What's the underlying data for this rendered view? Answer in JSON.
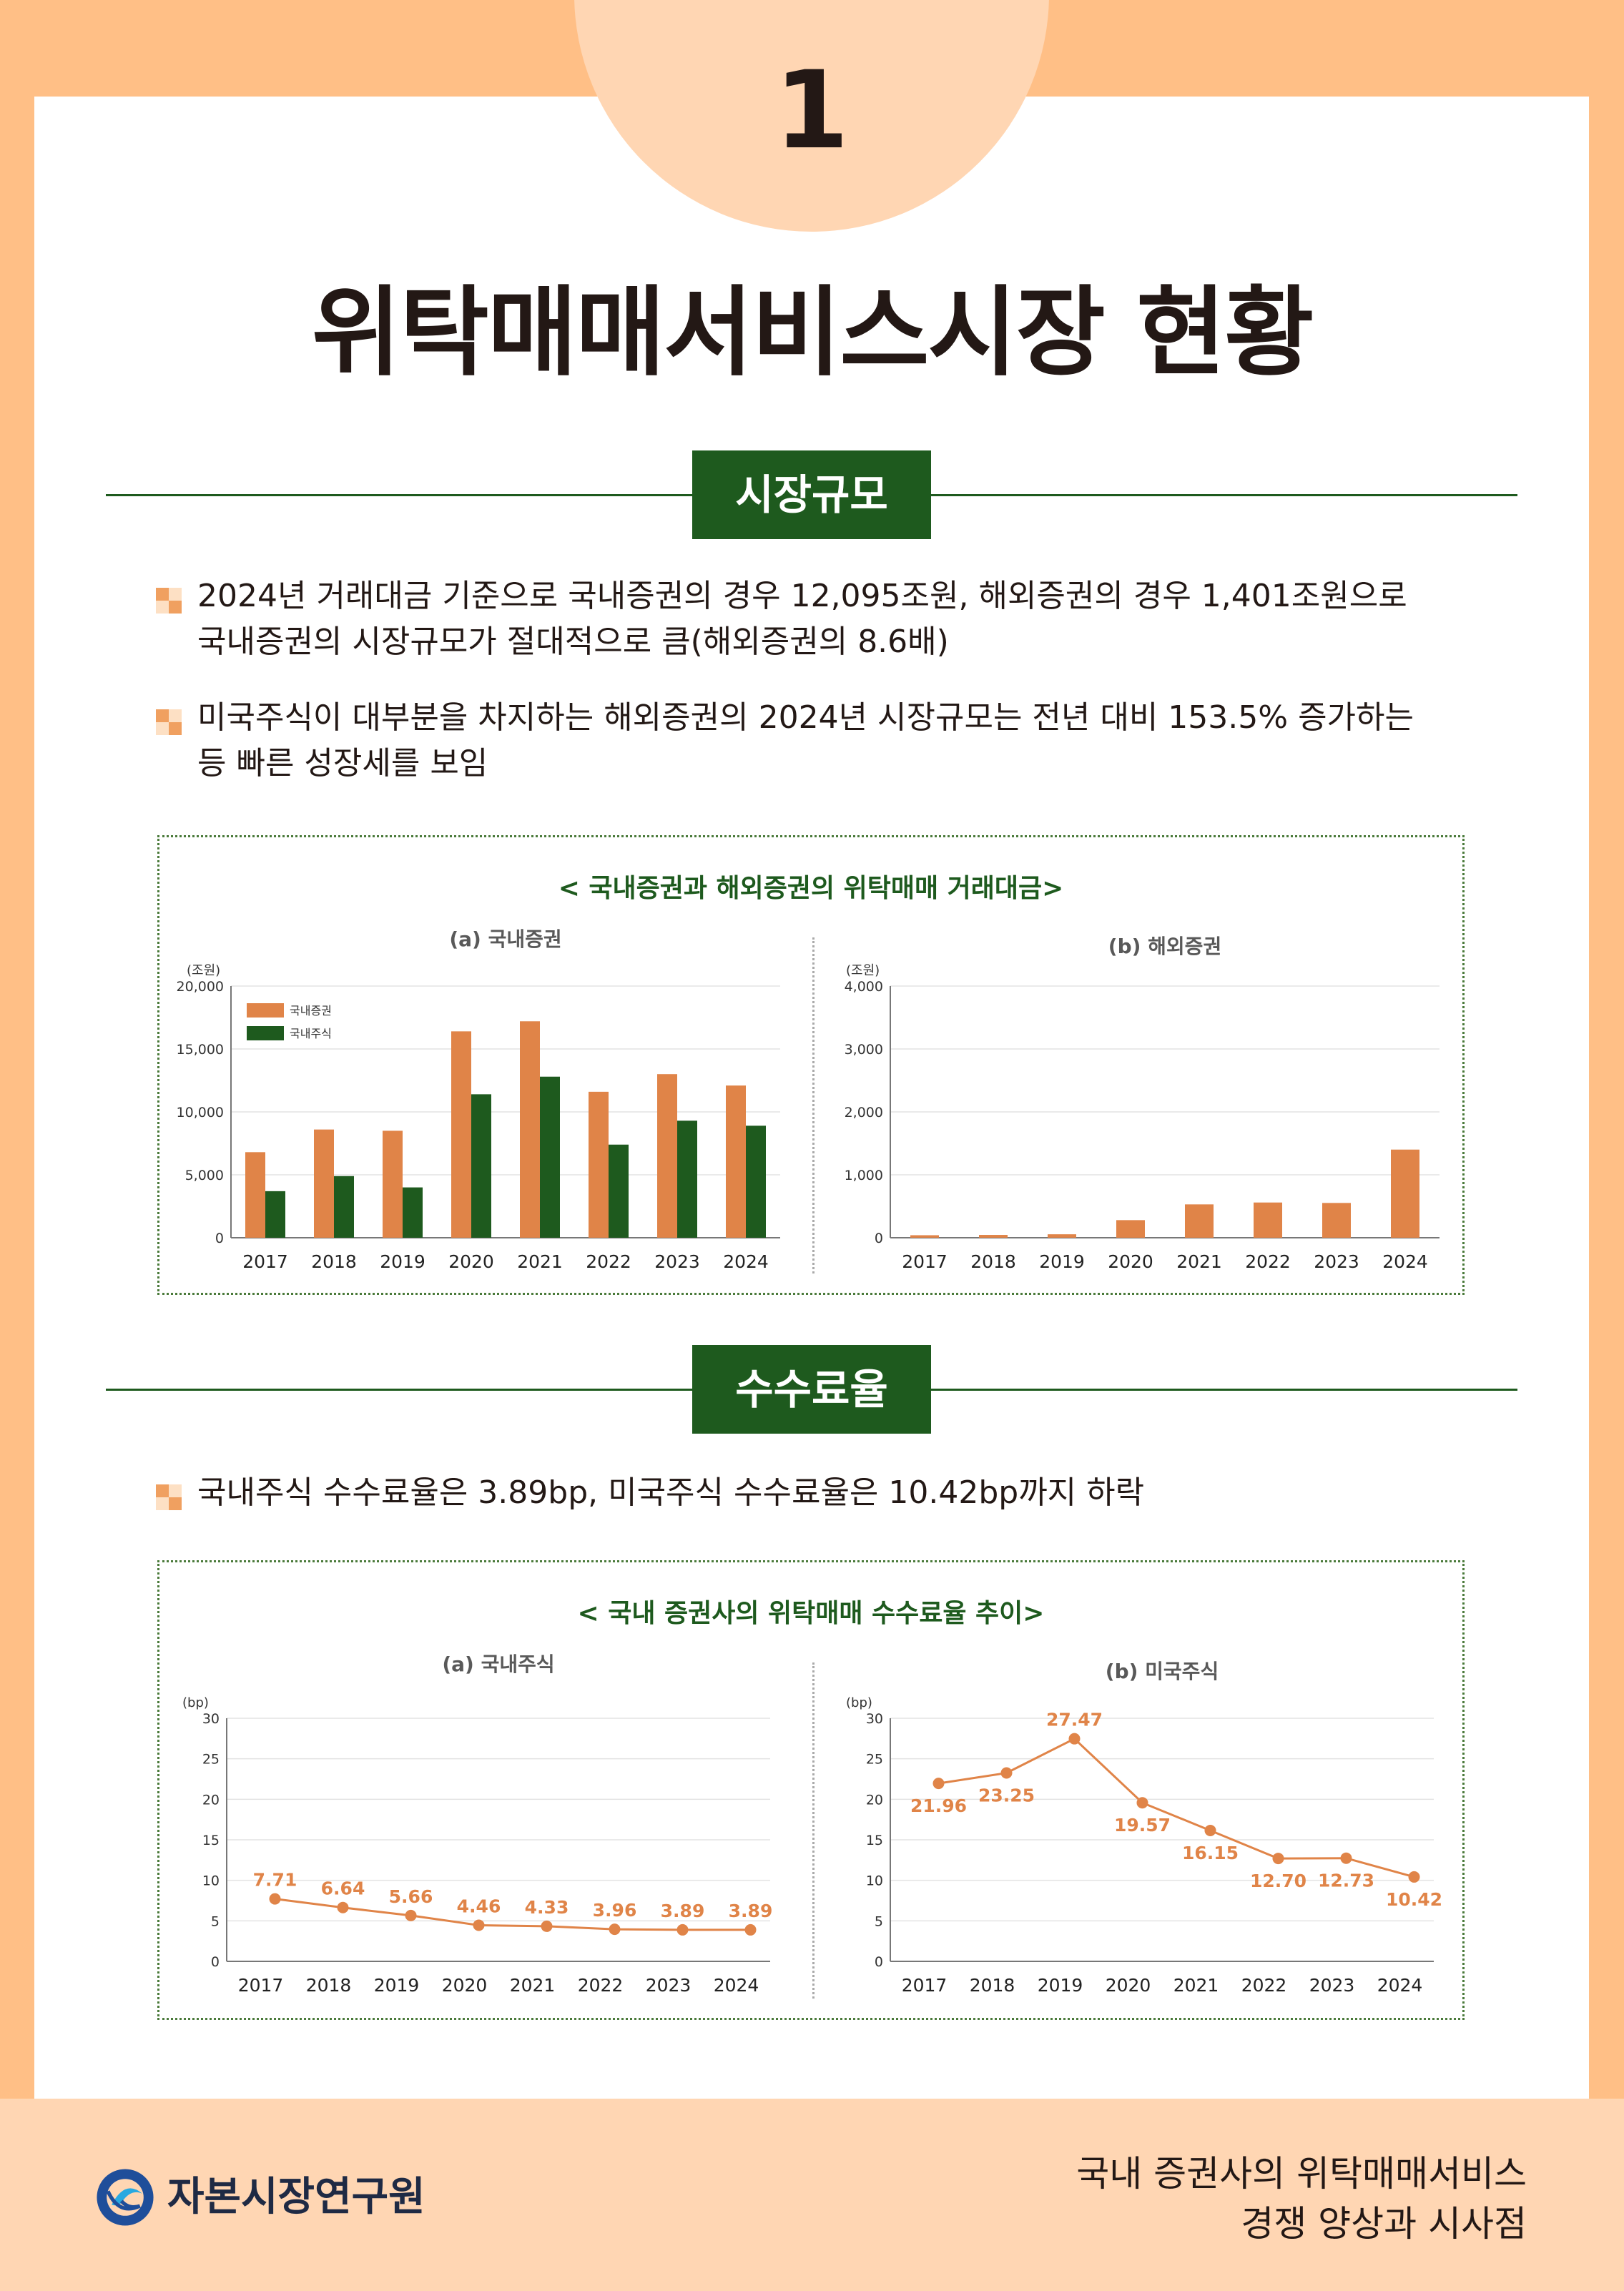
{
  "header": {
    "number": "1",
    "title": "위탁매매서비스시장 현황"
  },
  "section1": {
    "label": "시장규모",
    "bullets": [
      "2024년 거래대금 기준으로 국내증권의 경우 12,095조원, 해외증권의 경우 1,401조원으로\n국내증권의 시장규모가 절대적으로 큼(해외증권의 8.6배)",
      "미국주식이 대부분을 차지하는 해외증권의 2024년 시장규모는 전년 대비 153.5% 증가하는\n등 빠른 성장세를 보임"
    ]
  },
  "section2": {
    "label": "수수료율",
    "bullets": [
      "국내주식 수수료율은 3.89bp, 미국주식 수수료율은 10.42bp까지 하락"
    ]
  },
  "chart1_title": "< 국내증권과 해외증권의 위탁매매 거래대금>",
  "chart2_title": "< 국내 증권사의 위탁매매 수수료율 추이>",
  "colors": {
    "orange": "#e08448",
    "green": "#1e5a1e",
    "accent": "#ffbf86"
  },
  "chart_data": [
    {
      "type": "bar",
      "title": "(a) 국내증권",
      "ylabel": "(조원)",
      "ylim": [
        0,
        20000
      ],
      "yticks": [
        "0",
        "5,000",
        "10,000",
        "15,000",
        "20,000"
      ],
      "categories": [
        "2017",
        "2018",
        "2019",
        "2020",
        "2021",
        "2022",
        "2023",
        "2024"
      ],
      "series": [
        {
          "name": "국내증권",
          "values": [
            6800,
            8600,
            8500,
            16400,
            17200,
            11600,
            13000,
            12095
          ]
        },
        {
          "name": "국내주식",
          "values": [
            3700,
            4900,
            4000,
            11400,
            12800,
            7400,
            9300,
            8900
          ]
        }
      ],
      "legend": "top-left"
    },
    {
      "type": "bar",
      "title": "(b) 해외증권",
      "ylabel": "(조원)",
      "ylim": [
        0,
        4000
      ],
      "yticks": [
        "0",
        "1,000",
        "2,000",
        "3,000",
        "4,000"
      ],
      "categories": [
        "2017",
        "2018",
        "2019",
        "2020",
        "2021",
        "2022",
        "2023",
        "2024"
      ],
      "series": [
        {
          "name": "해외증권",
          "values": [
            40,
            45,
            55,
            280,
            530,
            560,
            553,
            1401
          ]
        }
      ]
    },
    {
      "type": "line",
      "title": "(a) 국내주식",
      "ylabel": "(bp)",
      "ylim": [
        0,
        30
      ],
      "yticks": [
        "0",
        "5",
        "10",
        "15",
        "20",
        "25",
        "30"
      ],
      "categories": [
        "2017",
        "2018",
        "2019",
        "2020",
        "2021",
        "2022",
        "2023",
        "2024"
      ],
      "values": [
        7.71,
        6.64,
        5.66,
        4.46,
        4.33,
        3.96,
        3.89,
        3.89
      ],
      "labels": [
        "7.71",
        "6.64",
        "5.66",
        "4.46",
        "4.33",
        "3.96",
        "3.89",
        "3.89"
      ],
      "label_pos": [
        "above",
        "above",
        "above",
        "above",
        "above",
        "above",
        "above",
        "above"
      ]
    },
    {
      "type": "line",
      "title": "(b) 미국주식",
      "ylabel": "(bp)",
      "ylim": [
        0,
        30
      ],
      "yticks": [
        "0",
        "5",
        "10",
        "15",
        "20",
        "25",
        "30"
      ],
      "categories": [
        "2017",
        "2018",
        "2019",
        "2020",
        "2021",
        "2022",
        "2023",
        "2024"
      ],
      "values": [
        21.96,
        23.25,
        27.47,
        19.57,
        16.15,
        12.7,
        12.73,
        10.42
      ],
      "labels": [
        "21.96",
        "23.25",
        "27.47",
        "19.57",
        "16.15",
        "12.70",
        "12.73",
        "10.42"
      ],
      "label_pos": [
        "below",
        "below",
        "above",
        "below",
        "below",
        "below",
        "below",
        "below"
      ]
    }
  ],
  "footer": {
    "org": "자본시장연구원",
    "report_line1": "국내 증권사의 위탁매매서비스",
    "report_line2": "경쟁 양상과 시사점"
  }
}
